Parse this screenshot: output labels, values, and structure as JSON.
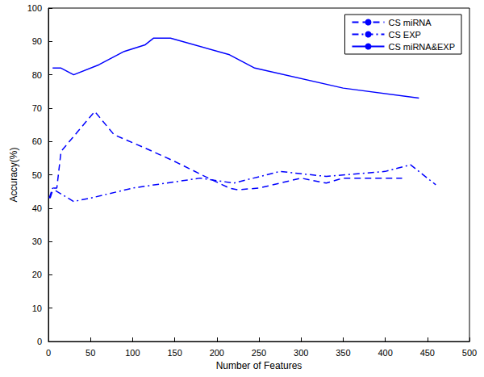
{
  "chart_data": {
    "type": "line",
    "x_label": "Number of Features",
    "y_label": "Accuracy(%)",
    "xlim": [
      0,
      500
    ],
    "xticks": [
      0,
      50,
      100,
      150,
      200,
      250,
      300,
      350,
      400,
      450,
      500
    ],
    "ylim": [
      0,
      100
    ],
    "yticks": [
      0,
      10,
      20,
      30,
      40,
      50,
      60,
      70,
      80,
      90,
      100
    ],
    "grid": false,
    "legend": "top-right",
    "marker": "none",
    "series": [
      {
        "name": "CS miRNA",
        "color": "#0000ff",
        "line_style": "dashed",
        "x": [
          2,
          6,
          10,
          15,
          35,
          55,
          78,
          115,
          150,
          190,
          215,
          225,
          250,
          300,
          330,
          350,
          420
        ],
        "values": [
          43,
          46,
          46,
          57,
          63,
          69,
          62,
          58,
          54,
          49,
          46,
          45.5,
          46,
          49,
          47.5,
          49,
          49
        ]
      },
      {
        "name": "CS EXP",
        "color": "#0000ff",
        "line_style": "dashdot",
        "x": [
          1,
          5,
          10,
          30,
          50,
          100,
          180,
          220,
          275,
          330,
          400,
          430,
          460
        ],
        "values": [
          43,
          46,
          45,
          42,
          43,
          46,
          49,
          47.5,
          51,
          49.5,
          51,
          53,
          47
        ]
      },
      {
        "name": "CS miRNA&EXP",
        "color": "#0000ff",
        "line_style": "solid",
        "x": [
          5,
          15,
          30,
          60,
          90,
          115,
          125,
          145,
          215,
          245,
          350,
          440
        ],
        "values": [
          82,
          82,
          80,
          83,
          87,
          89,
          91,
          91,
          86,
          82,
          76,
          73
        ]
      }
    ]
  }
}
